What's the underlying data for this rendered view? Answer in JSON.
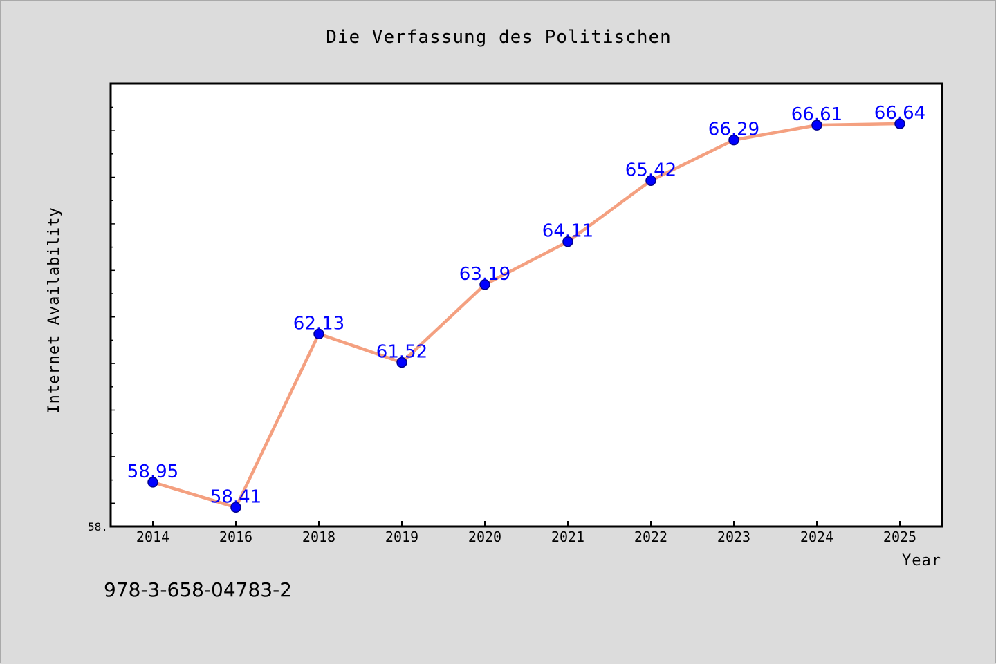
{
  "chart_data": {
    "type": "line",
    "title": "Die Verfassung des Politischen",
    "xlabel": "Year",
    "ylabel": "Internet Availability",
    "categories": [
      "2014",
      "2016",
      "2018",
      "2019",
      "2020",
      "2021",
      "2022",
      "2023",
      "2024",
      "2025"
    ],
    "series": [
      {
        "values": [
          58.95,
          58.41,
          62.13,
          61.52,
          63.19,
          64.11,
          65.42,
          66.29,
          66.61,
          66.64
        ]
      }
    ],
    "data_labels": [
      "58.95",
      "58.41",
      "62.13",
      "61.52",
      "63.19",
      "64.11",
      "65.42",
      "66.29",
      "66.61",
      "66.64"
    ],
    "ylim": [
      58.0,
      67.5
    ],
    "y_tick_label": "58.",
    "grid": false,
    "colors": {
      "line": "#f4a080",
      "marker": "#0000ff",
      "marker_edge": "#00008b",
      "data_label": "#0000ff",
      "plot_background": "#ffffff",
      "figure_background": "#dcdcdc"
    }
  },
  "footer": {
    "isbn": "978-3-658-04783-2"
  }
}
